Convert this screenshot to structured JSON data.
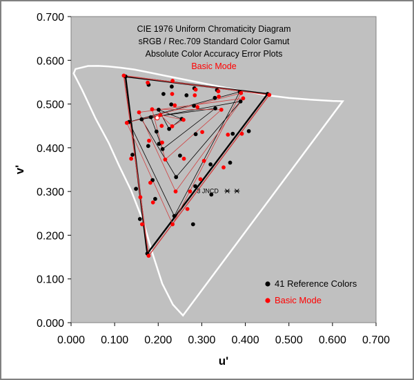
{
  "chart_data": {
    "type": "scatter",
    "title_lines": [
      "CIE 1976 Uniform Chromaticity Diagram",
      "sRGB / Rec.709 Standard Color Gamut",
      "Absolute Color Accuracy Error Plots"
    ],
    "subtitle": "Basic Mode",
    "xlabel": "u'",
    "ylabel": "v'",
    "xlim": [
      0,
      0.7
    ],
    "ylim": [
      0,
      0.7
    ],
    "xticks": [
      "0.000",
      "0.100",
      "0.200",
      "0.300",
      "0.400",
      "0.500",
      "0.600",
      "0.700"
    ],
    "yticks": [
      "0.000",
      "0.100",
      "0.200",
      "0.300",
      "0.400",
      "0.500",
      "0.600",
      "0.700"
    ],
    "grid": false,
    "legend_position": "bottom-right",
    "annotation": {
      "text": "3 JNCD",
      "u": 0.3585,
      "v": 0.301
    },
    "colors": {
      "plot_bg": "#c0c0c0",
      "locus": "#ffffff",
      "reference": "#000000",
      "measured": "#ff0000",
      "measured_line": "#d04040"
    },
    "locus": [
      [
        0.2568,
        0.0165
      ],
      [
        0.2337,
        0.0412
      ],
      [
        0.2092,
        0.0895
      ],
      [
        0.1874,
        0.157
      ],
      [
        0.1657,
        0.231
      ],
      [
        0.138,
        0.302
      ],
      [
        0.1102,
        0.359
      ],
      [
        0.0864,
        0.411
      ],
      [
        0.0563,
        0.467
      ],
      [
        0.0251,
        0.533
      ],
      [
        0.006,
        0.57
      ],
      [
        0.0102,
        0.58
      ],
      [
        0.0389,
        0.587
      ],
      [
        0.0629,
        0.5872
      ],
      [
        0.0849,
        0.586
      ],
      [
        0.114,
        0.583
      ],
      [
        0.145,
        0.579
      ],
      [
        0.18,
        0.572
      ],
      [
        0.22,
        0.564
      ],
      [
        0.26,
        0.556
      ],
      [
        0.3,
        0.548
      ],
      [
        0.35,
        0.538
      ],
      [
        0.4,
        0.529
      ],
      [
        0.45,
        0.52
      ],
      [
        0.5,
        0.514
      ],
      [
        0.55,
        0.51
      ],
      [
        0.6,
        0.507
      ],
      [
        0.6234,
        0.5065
      ],
      [
        0.2568,
        0.0165
      ]
    ],
    "series": [
      {
        "name": "41 Reference Colors",
        "points": [
          [
            0.451,
            0.523
          ],
          [
            0.125,
            0.563
          ],
          [
            0.175,
            0.158
          ],
          [
            0.387,
            0.528
          ],
          [
            0.335,
            0.532
          ],
          [
            0.283,
            0.536
          ],
          [
            0.231,
            0.54
          ],
          [
            0.178,
            0.544
          ],
          [
            0.408,
            0.438
          ],
          [
            0.365,
            0.366
          ],
          [
            0.322,
            0.293
          ],
          [
            0.28,
            0.225
          ],
          [
            0.237,
            0.244
          ],
          [
            0.133,
            0.459
          ],
          [
            0.141,
            0.384
          ],
          [
            0.149,
            0.306
          ],
          [
            0.158,
            0.237
          ],
          [
            0.389,
            0.506
          ],
          [
            0.33,
            0.514
          ],
          [
            0.265,
            0.52
          ],
          [
            0.212,
            0.523
          ],
          [
            0.371,
            0.432
          ],
          [
            0.32,
            0.362
          ],
          [
            0.285,
            0.312
          ],
          [
            0.241,
            0.333
          ],
          [
            0.162,
            0.465
          ],
          [
            0.177,
            0.404
          ],
          [
            0.187,
            0.326
          ],
          [
            0.193,
            0.283
          ],
          [
            0.331,
            0.49
          ],
          [
            0.282,
            0.496
          ],
          [
            0.23,
            0.499
          ],
          [
            0.286,
            0.431
          ],
          [
            0.25,
            0.382
          ],
          [
            0.21,
            0.397
          ],
          [
            0.183,
            0.47
          ],
          [
            0.196,
            0.437
          ],
          [
            0.202,
            0.409
          ],
          [
            0.254,
            0.466
          ],
          [
            0.225,
            0.443
          ],
          [
            0.201,
            0.487
          ]
        ]
      },
      {
        "name": "Basic Mode",
        "points": [
          [
            0.455,
            0.521
          ],
          [
            0.121,
            0.565
          ],
          [
            0.178,
            0.153
          ],
          [
            0.39,
            0.525
          ],
          [
            0.338,
            0.529
          ],
          [
            0.286,
            0.533
          ],
          [
            0.233,
            0.553
          ],
          [
            0.176,
            0.549
          ],
          [
            0.392,
            0.432
          ],
          [
            0.35,
            0.355
          ],
          [
            0.297,
            0.328
          ],
          [
            0.267,
            0.26
          ],
          [
            0.233,
            0.225
          ],
          [
            0.128,
            0.457
          ],
          [
            0.138,
            0.375
          ],
          [
            0.159,
            0.287
          ],
          [
            0.163,
            0.225
          ],
          [
            0.395,
            0.513
          ],
          [
            0.339,
            0.517
          ],
          [
            0.284,
            0.52
          ],
          [
            0.232,
            0.523
          ],
          [
            0.36,
            0.43
          ],
          [
            0.305,
            0.37
          ],
          [
            0.273,
            0.3
          ],
          [
            0.24,
            0.3
          ],
          [
            0.156,
            0.481
          ],
          [
            0.179,
            0.416
          ],
          [
            0.182,
            0.32
          ],
          [
            0.188,
            0.275
          ],
          [
            0.345,
            0.487
          ],
          [
            0.29,
            0.493
          ],
          [
            0.238,
            0.497
          ],
          [
            0.301,
            0.436
          ],
          [
            0.259,
            0.375
          ],
          [
            0.216,
            0.373
          ],
          [
            0.186,
            0.488
          ],
          [
            0.208,
            0.45
          ],
          [
            0.209,
            0.412
          ],
          [
            0.258,
            0.464
          ],
          [
            0.232,
            0.449
          ],
          [
            0.205,
            0.475
          ]
        ]
      }
    ],
    "whitepoint": [
      0.1978,
      0.4683
    ],
    "legend": {
      "items": [
        "41 Reference Colors",
        "Basic Mode"
      ]
    }
  }
}
